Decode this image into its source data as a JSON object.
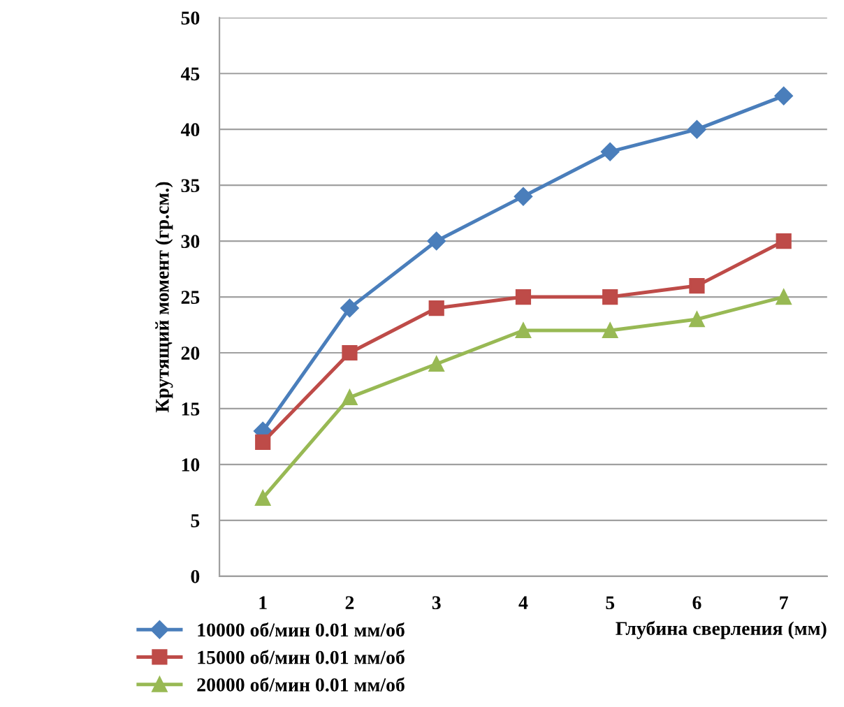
{
  "chart_data": {
    "type": "line",
    "xlabel": "Глубина сверления (мм)",
    "ylabel": "Крутящий момент (гр.см.)",
    "categories": [
      "1",
      "2",
      "3",
      "4",
      "5",
      "6",
      "7"
    ],
    "series": [
      {
        "name": "10000 об/мин 0.01 мм/об",
        "color": "#4a7ebb",
        "marker": "diamond",
        "values": [
          13,
          24,
          30,
          34,
          38,
          40,
          43
        ]
      },
      {
        "name": "15000 об/мин 0.01 мм/об",
        "color": "#be4b48",
        "marker": "square",
        "values": [
          12,
          20,
          24,
          25,
          25,
          26,
          30
        ]
      },
      {
        "name": "20000 об/мин 0.01 мм/об",
        "color": "#98b954",
        "marker": "triangle",
        "values": [
          7,
          16,
          19,
          22,
          22,
          23,
          25
        ]
      }
    ],
    "ylim": [
      0,
      50
    ],
    "yticks": [
      0,
      5,
      10,
      15,
      20,
      25,
      30,
      35,
      40,
      45,
      50
    ],
    "grid": "y",
    "legend": "bottom left",
    "line_style": "solid"
  }
}
